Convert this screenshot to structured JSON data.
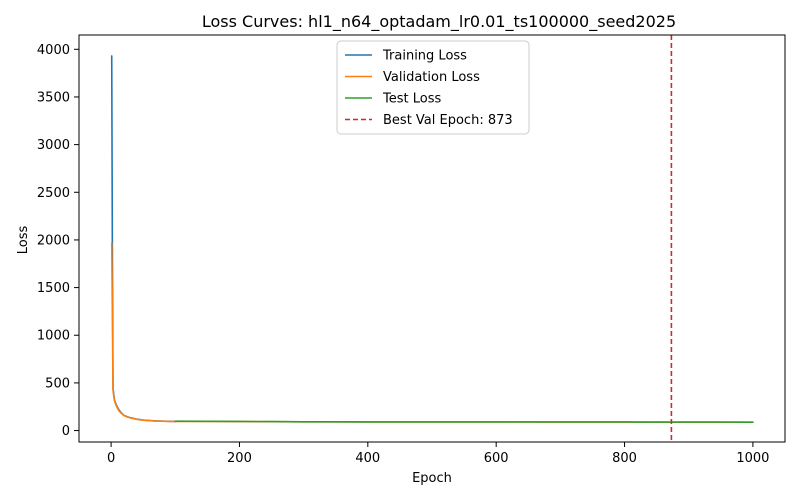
{
  "chart_data": {
    "type": "line",
    "title": "Loss Curves: hl1_n64_optadam_lr0.01_ts100000_seed2025",
    "xlabel": "Epoch",
    "ylabel": "Loss",
    "xlim": [
      -50,
      1050
    ],
    "ylim": [
      -120,
      4150
    ],
    "x_ticks": [
      0,
      200,
      400,
      600,
      800,
      1000
    ],
    "y_ticks": [
      0,
      500,
      1000,
      1500,
      2000,
      2500,
      3000,
      3500,
      4000
    ],
    "grid": false,
    "legend_position": "top-center",
    "series": [
      {
        "name": "Training Loss",
        "color": "#1f77b4",
        "x": [
          1,
          2,
          3,
          5,
          8,
          12,
          16,
          20,
          25,
          30,
          40,
          50,
          60,
          70,
          80,
          90,
          100
        ],
        "y": [
          3930,
          1900,
          450,
          330,
          270,
          220,
          185,
          160,
          145,
          135,
          120,
          110,
          105,
          101,
          99,
          97,
          96
        ]
      },
      {
        "name": "Validation Loss",
        "color": "#ff7f0e",
        "x": [
          1,
          2,
          3,
          5,
          8,
          12,
          16,
          20,
          25,
          30,
          40,
          50,
          60,
          70,
          80,
          90,
          100,
          150,
          200,
          250,
          300,
          400,
          500,
          600,
          700,
          800,
          873,
          900,
          1000
        ],
        "y": [
          1970,
          1200,
          420,
          320,
          260,
          210,
          180,
          158,
          143,
          133,
          118,
          109,
          104,
          100,
          98,
          96,
          95,
          95,
          94,
          93,
          92,
          91,
          90,
          90,
          89,
          89,
          88,
          88,
          88
        ]
      },
      {
        "name": "Test Loss",
        "color": "#2ca02c",
        "x": [
          100,
          150,
          200,
          250,
          300,
          350,
          400,
          450,
          500,
          550,
          600,
          650,
          700,
          750,
          800,
          850,
          900,
          950,
          1000
        ],
        "y": [
          98,
          97,
          96,
          94,
          92,
          92,
          91,
          91,
          91,
          90,
          90,
          90,
          90,
          90,
          90,
          89,
          89,
          89,
          88
        ]
      }
    ],
    "vline": {
      "name": "Best Val Epoch: 873",
      "x": 873,
      "color": "#d62728"
    }
  }
}
